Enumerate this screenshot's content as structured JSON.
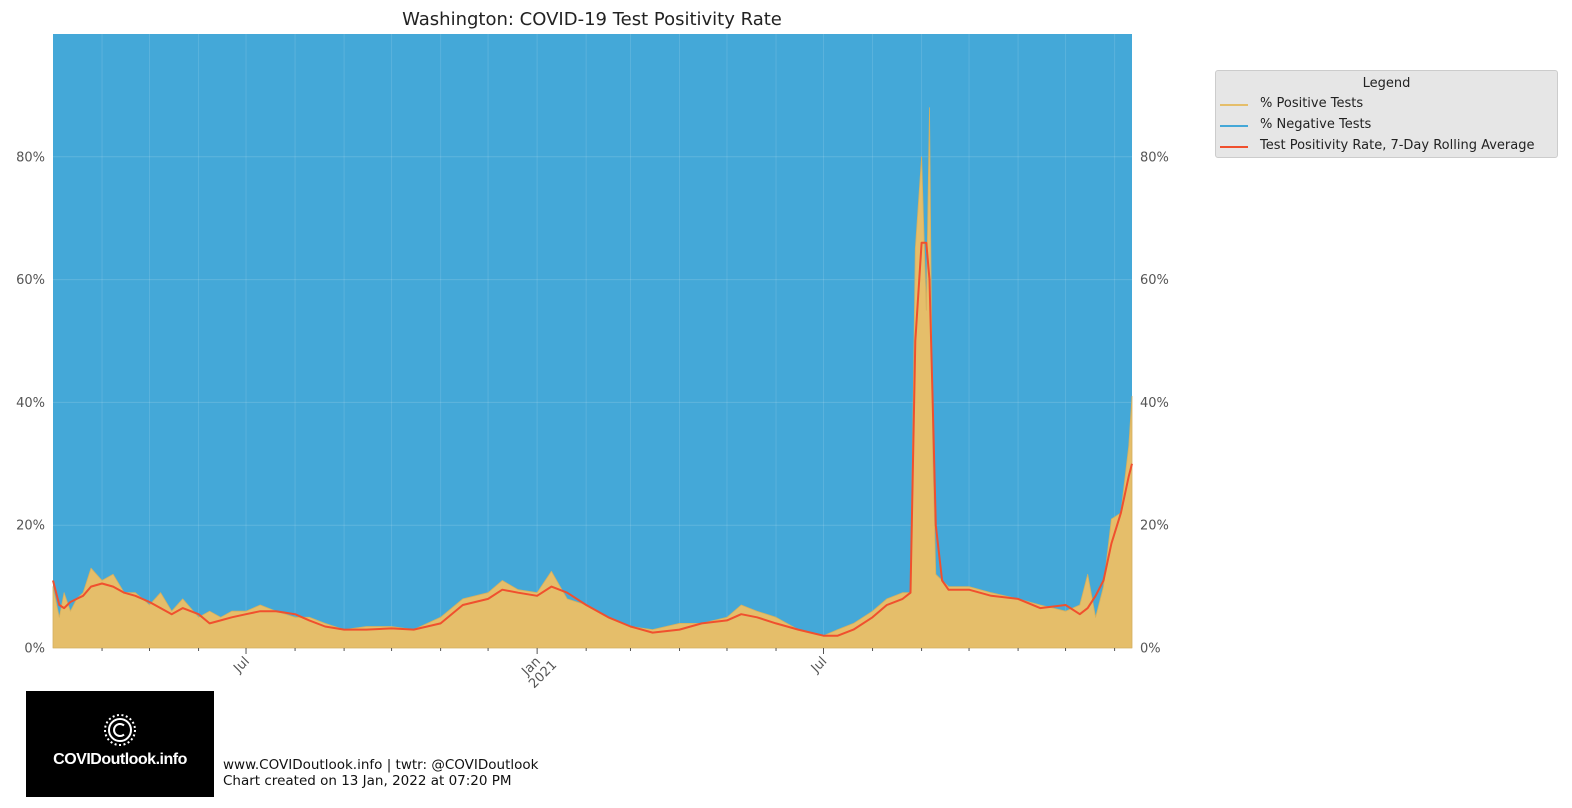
{
  "chart_data": {
    "type": "area",
    "title": "Washington: COVID-19 Test Positivity Rate",
    "xlabel": "",
    "ylabel": "",
    "x_range": [
      "2020-03-01",
      "2022-01-12"
    ],
    "ylim": [
      0,
      1
    ],
    "y_ticks": [
      {
        "value": 0.0,
        "label": "0%"
      },
      {
        "value": 0.2,
        "label": "20%"
      },
      {
        "value": 0.4,
        "label": "40%"
      },
      {
        "value": 0.6,
        "label": "60%"
      },
      {
        "value": 0.8,
        "label": "80%"
      }
    ],
    "x_major_ticks": [
      {
        "date": "2020-07-01",
        "label": "Jul"
      },
      {
        "date": "2021-01-01",
        "label": "Jan\n2021"
      },
      {
        "date": "2021-07-01",
        "label": "Jul"
      }
    ],
    "x_minor_ticks": [
      "2020-04-01",
      "2020-05-01",
      "2020-06-01",
      "2020-08-01",
      "2020-09-01",
      "2020-10-01",
      "2020-11-01",
      "2020-12-01",
      "2021-02-01",
      "2021-03-01",
      "2021-04-01",
      "2021-05-01",
      "2021-06-01",
      "2021-08-01",
      "2021-09-01",
      "2021-10-01",
      "2021-11-01",
      "2021-12-01",
      "2022-01-01"
    ],
    "grid": true,
    "legend_position": "outside-top-right",
    "legend": {
      "title": "Legend",
      "entries": [
        "% Positive Tests",
        "% Negative Tests",
        "Test Positivity Rate, 7-Day Rolling Average"
      ]
    },
    "colors": {
      "positive": "#e5be6a",
      "negative": "#44a8d8",
      "rolling": "#f0502e",
      "plot_bg": "#44a8d8"
    },
    "series": [
      {
        "name": "% Positive Tests",
        "x": [
          "2020-03-01",
          "2020-03-05",
          "2020-03-08",
          "2020-03-12",
          "2020-03-16",
          "2020-03-20",
          "2020-03-25",
          "2020-04-01",
          "2020-04-08",
          "2020-04-15",
          "2020-04-22",
          "2020-05-01",
          "2020-05-08",
          "2020-05-15",
          "2020-05-22",
          "2020-06-01",
          "2020-06-08",
          "2020-06-15",
          "2020-06-22",
          "2020-07-01",
          "2020-07-10",
          "2020-07-20",
          "2020-08-01",
          "2020-08-10",
          "2020-08-20",
          "2020-09-01",
          "2020-09-15",
          "2020-10-01",
          "2020-10-15",
          "2020-11-01",
          "2020-11-15",
          "2020-12-01",
          "2020-12-10",
          "2020-12-20",
          "2021-01-01",
          "2021-01-10",
          "2021-01-20",
          "2021-02-01",
          "2021-02-15",
          "2021-03-01",
          "2021-03-15",
          "2021-04-01",
          "2021-04-15",
          "2021-05-01",
          "2021-05-10",
          "2021-05-20",
          "2021-06-01",
          "2021-06-15",
          "2021-07-01",
          "2021-07-10",
          "2021-07-20",
          "2021-08-01",
          "2021-08-10",
          "2021-08-20",
          "2021-08-25",
          "2021-08-28",
          "2021-09-01",
          "2021-09-04",
          "2021-09-06",
          "2021-09-08",
          "2021-09-10",
          "2021-09-14",
          "2021-09-18",
          "2021-10-01",
          "2021-10-15",
          "2021-11-01",
          "2021-11-15",
          "2021-12-01",
          "2021-12-10",
          "2021-12-15",
          "2021-12-20",
          "2021-12-25",
          "2021-12-30",
          "2022-01-05",
          "2022-01-10",
          "2022-01-12"
        ],
        "values": [
          0.1,
          0.05,
          0.09,
          0.06,
          0.08,
          0.09,
          0.13,
          0.11,
          0.12,
          0.09,
          0.09,
          0.07,
          0.09,
          0.06,
          0.08,
          0.05,
          0.06,
          0.05,
          0.06,
          0.06,
          0.07,
          0.06,
          0.05,
          0.05,
          0.04,
          0.03,
          0.035,
          0.035,
          0.03,
          0.05,
          0.08,
          0.09,
          0.11,
          0.095,
          0.09,
          0.125,
          0.08,
          0.07,
          0.05,
          0.035,
          0.03,
          0.04,
          0.04,
          0.05,
          0.07,
          0.06,
          0.05,
          0.03,
          0.02,
          0.03,
          0.04,
          0.06,
          0.08,
          0.09,
          0.09,
          0.65,
          0.8,
          0.55,
          0.88,
          0.32,
          0.12,
          0.11,
          0.1,
          0.1,
          0.09,
          0.08,
          0.07,
          0.06,
          0.07,
          0.12,
          0.05,
          0.1,
          0.21,
          0.22,
          0.33,
          0.41
        ]
      },
      {
        "name": "Test Positivity Rate, 7-Day Rolling Average",
        "x": [
          "2020-03-01",
          "2020-03-05",
          "2020-03-08",
          "2020-03-12",
          "2020-03-16",
          "2020-03-20",
          "2020-03-25",
          "2020-04-01",
          "2020-04-08",
          "2020-04-15",
          "2020-04-22",
          "2020-05-01",
          "2020-05-08",
          "2020-05-15",
          "2020-05-22",
          "2020-06-01",
          "2020-06-08",
          "2020-06-15",
          "2020-06-22",
          "2020-07-01",
          "2020-07-10",
          "2020-07-20",
          "2020-08-01",
          "2020-08-10",
          "2020-08-20",
          "2020-09-01",
          "2020-09-15",
          "2020-10-01",
          "2020-10-15",
          "2020-11-01",
          "2020-11-15",
          "2020-12-01",
          "2020-12-10",
          "2020-12-20",
          "2021-01-01",
          "2021-01-10",
          "2021-01-20",
          "2021-02-01",
          "2021-02-15",
          "2021-03-01",
          "2021-03-15",
          "2021-04-01",
          "2021-04-15",
          "2021-05-01",
          "2021-05-10",
          "2021-05-20",
          "2021-06-01",
          "2021-06-15",
          "2021-07-01",
          "2021-07-10",
          "2021-07-20",
          "2021-08-01",
          "2021-08-10",
          "2021-08-20",
          "2021-08-25",
          "2021-08-28",
          "2021-09-01",
          "2021-09-04",
          "2021-09-06",
          "2021-09-08",
          "2021-09-10",
          "2021-09-14",
          "2021-09-18",
          "2021-10-01",
          "2021-10-15",
          "2021-11-01",
          "2021-11-15",
          "2021-12-01",
          "2021-12-10",
          "2021-12-15",
          "2021-12-20",
          "2021-12-25",
          "2021-12-30",
          "2022-01-05",
          "2022-01-10",
          "2022-01-12"
        ],
        "values": [
          0.11,
          0.07,
          0.065,
          0.075,
          0.08,
          0.085,
          0.1,
          0.105,
          0.1,
          0.09,
          0.085,
          0.075,
          0.065,
          0.055,
          0.065,
          0.055,
          0.04,
          0.045,
          0.05,
          0.055,
          0.06,
          0.06,
          0.055,
          0.045,
          0.035,
          0.03,
          0.03,
          0.032,
          0.03,
          0.04,
          0.07,
          0.08,
          0.095,
          0.09,
          0.085,
          0.1,
          0.09,
          0.07,
          0.05,
          0.035,
          0.025,
          0.03,
          0.04,
          0.045,
          0.055,
          0.05,
          0.04,
          0.03,
          0.02,
          0.02,
          0.03,
          0.05,
          0.07,
          0.08,
          0.09,
          0.5,
          0.66,
          0.66,
          0.6,
          0.4,
          0.2,
          0.11,
          0.095,
          0.095,
          0.085,
          0.08,
          0.065,
          0.07,
          0.055,
          0.065,
          0.085,
          0.11,
          0.17,
          0.22,
          0.28,
          0.3
        ]
      }
    ]
  },
  "footer": {
    "site_line": "www.COVIDoutlook.info | twtr: @COVIDoutlook",
    "created_line": "Chart created on 13 Jan, 2022 at 07:20 PM"
  },
  "logo": {
    "text": "COVIDoutlook.info",
    "icon": "covid-virus-logo-icon"
  }
}
